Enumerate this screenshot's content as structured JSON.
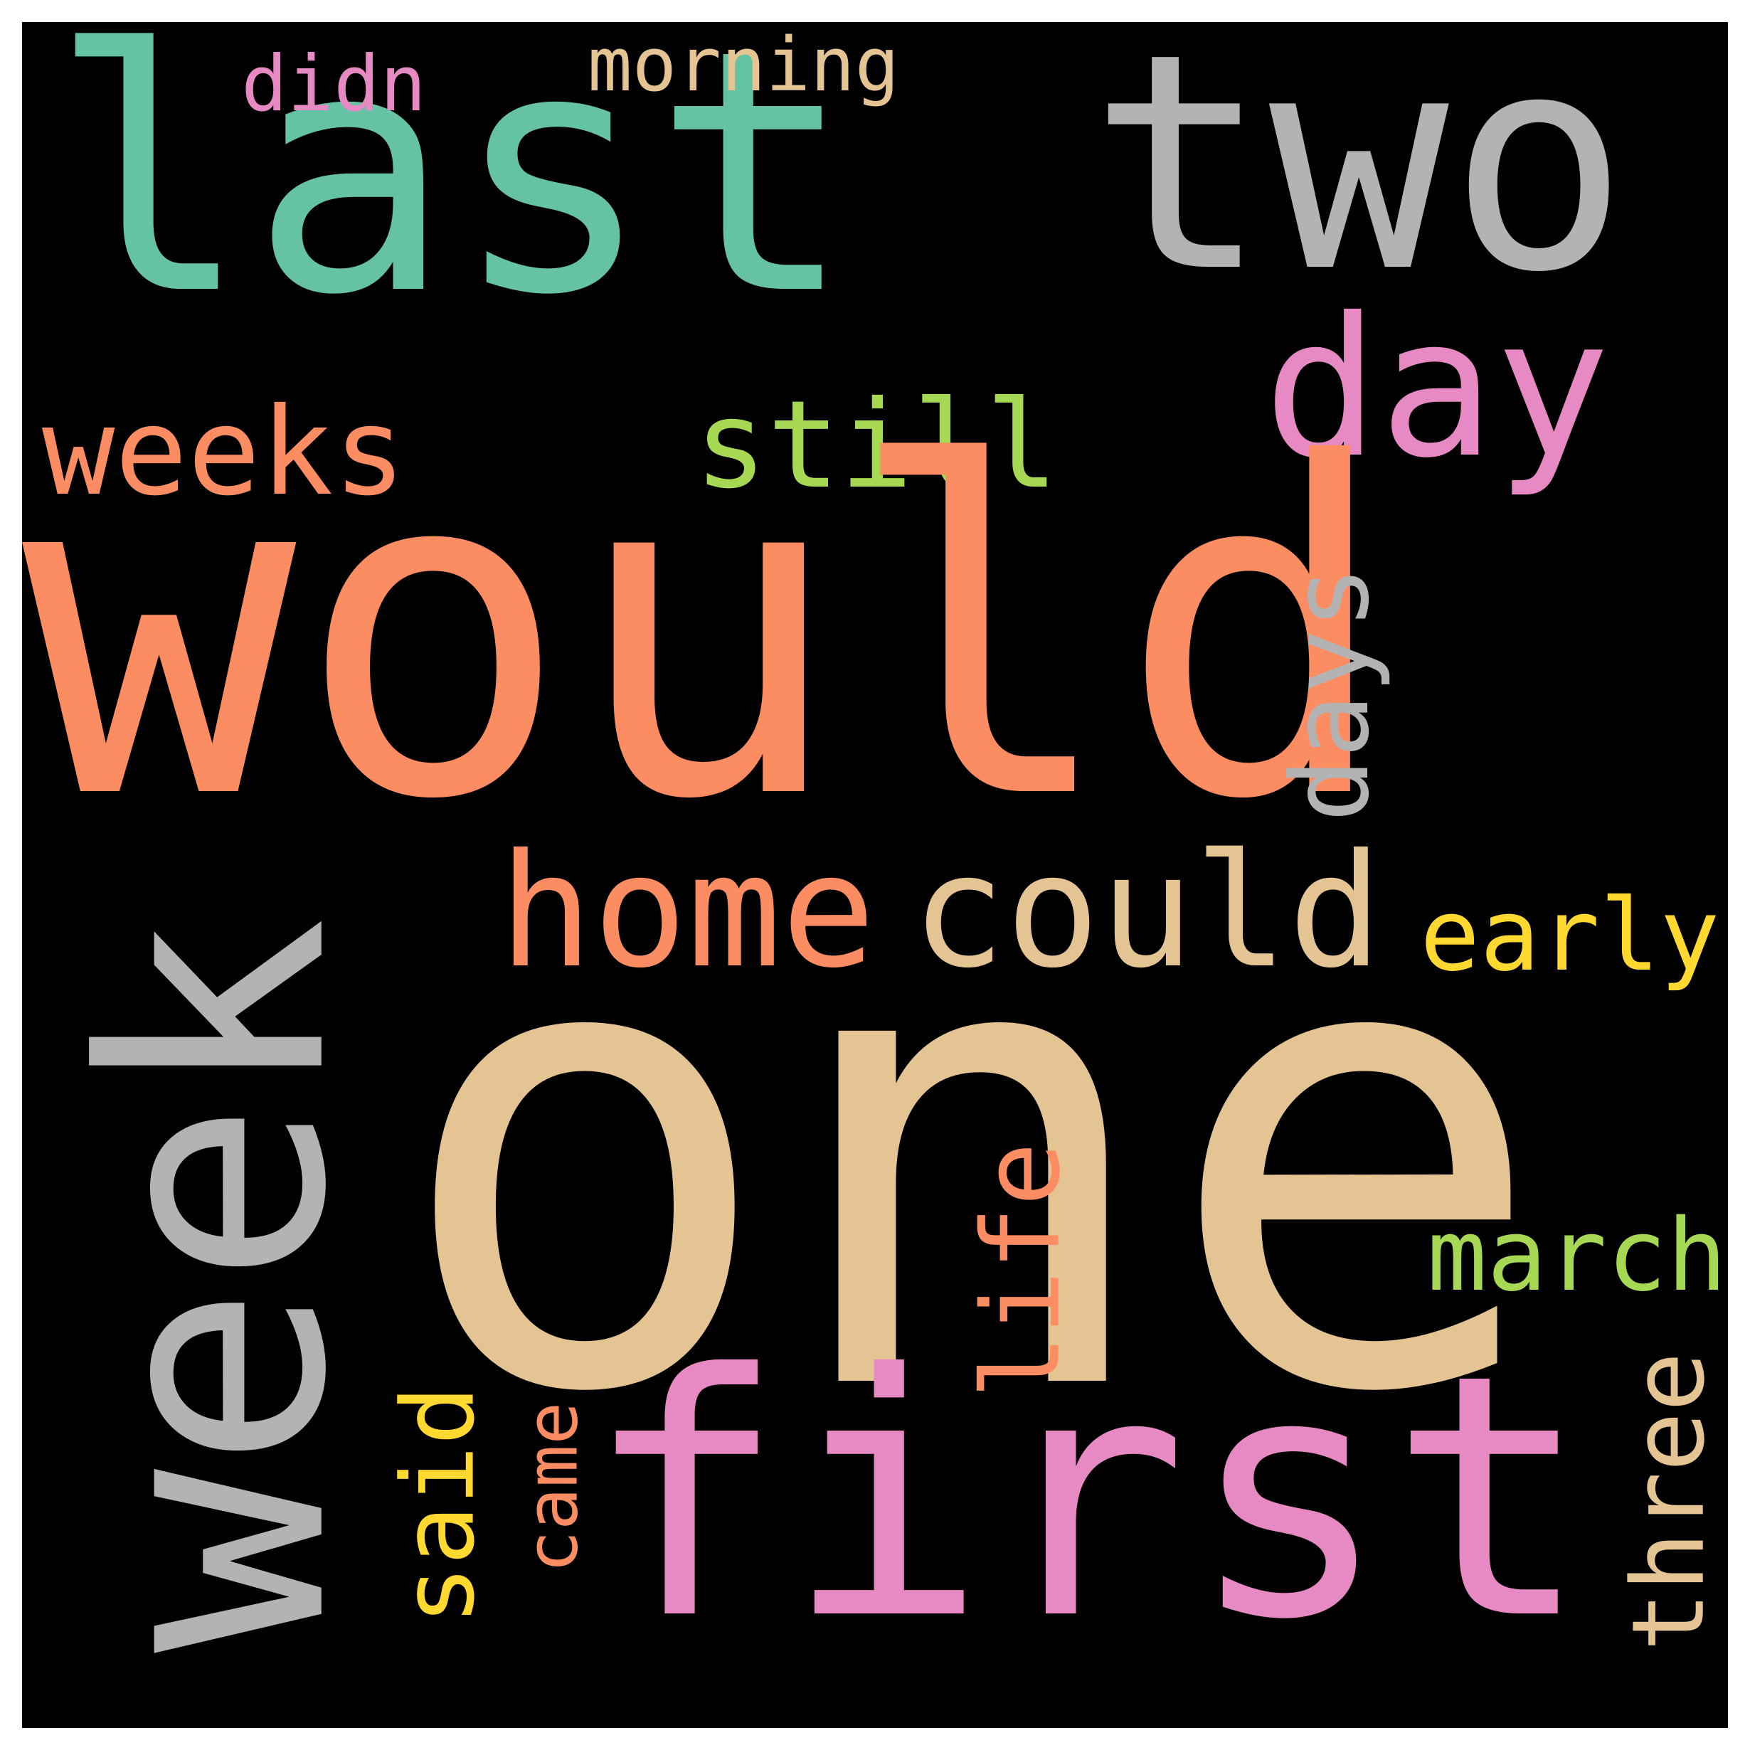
{
  "background_color": "#000000",
  "frame_color": "#ffffff",
  "palette": {
    "teal": "#66c2a5",
    "orange": "#fc8d62",
    "pink": "#e78ac3",
    "green": "#a6d854",
    "yellow": "#ffd92f",
    "tan": "#e5c494",
    "gray": "#b3b3b3"
  },
  "words": [
    {
      "id": "last",
      "text": "last",
      "color": "#66c2a5",
      "orientation": "horizontal"
    },
    {
      "id": "two",
      "text": "two",
      "color": "#b3b3b3",
      "orientation": "horizontal"
    },
    {
      "id": "didn",
      "text": "didn",
      "color": "#e78ac3",
      "orientation": "horizontal"
    },
    {
      "id": "morning",
      "text": "morning",
      "color": "#e5c494",
      "orientation": "horizontal"
    },
    {
      "id": "day",
      "text": "day",
      "color": "#e78ac3",
      "orientation": "horizontal"
    },
    {
      "id": "weeks",
      "text": "weeks",
      "color": "#fc8d62",
      "orientation": "horizontal"
    },
    {
      "id": "still",
      "text": "still",
      "color": "#a6d854",
      "orientation": "horizontal"
    },
    {
      "id": "days",
      "text": "days",
      "color": "#b3b3b3",
      "orientation": "vertical"
    },
    {
      "id": "would",
      "text": "would",
      "color": "#fc8d62",
      "orientation": "horizontal"
    },
    {
      "id": "home",
      "text": "home",
      "color": "#fc8d62",
      "orientation": "horizontal"
    },
    {
      "id": "could",
      "text": "could",
      "color": "#e5c494",
      "orientation": "horizontal"
    },
    {
      "id": "early",
      "text": "early",
      "color": "#ffd92f",
      "orientation": "horizontal"
    },
    {
      "id": "week",
      "text": "week",
      "color": "#b3b3b3",
      "orientation": "vertical"
    },
    {
      "id": "one",
      "text": "one",
      "color": "#e5c494",
      "orientation": "horizontal"
    },
    {
      "id": "life",
      "text": "life",
      "color": "#fc8d62",
      "orientation": "vertical"
    },
    {
      "id": "march",
      "text": "march",
      "color": "#a6d854",
      "orientation": "horizontal"
    },
    {
      "id": "said",
      "text": "said",
      "color": "#ffd92f",
      "orientation": "vertical"
    },
    {
      "id": "came",
      "text": "came",
      "color": "#fc8d62",
      "orientation": "vertical"
    },
    {
      "id": "first",
      "text": "first",
      "color": "#e78ac3",
      "orientation": "horizontal"
    },
    {
      "id": "three",
      "text": "three",
      "color": "#e5c494",
      "orientation": "vertical"
    }
  ]
}
